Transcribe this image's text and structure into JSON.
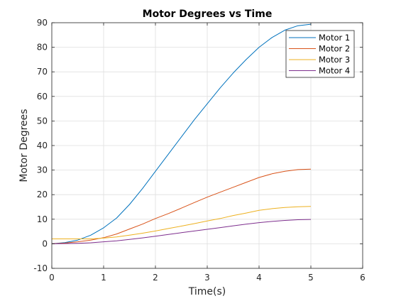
{
  "chart_data": {
    "type": "line",
    "title": "Motor Degrees vs Time",
    "xlabel": "Time(s)",
    "ylabel": "Motor Degrees",
    "xlim": [
      0,
      6
    ],
    "ylim": [
      -10,
      90
    ],
    "xticks": [
      0,
      1,
      2,
      3,
      4,
      5,
      6
    ],
    "yticks": [
      -10,
      0,
      10,
      20,
      30,
      40,
      50,
      60,
      70,
      80,
      90
    ],
    "grid": true,
    "legend_position": "top-right",
    "x": [
      0,
      0.25,
      0.5,
      0.75,
      1,
      1.25,
      1.5,
      1.75,
      2,
      2.25,
      2.5,
      2.75,
      3,
      3.25,
      3.5,
      3.75,
      4,
      4.25,
      4.5,
      4.75,
      5
    ],
    "series": [
      {
        "name": "Motor 1",
        "color": "#0072bd",
        "values": [
          0,
          0.5,
          1.5,
          3.5,
          6.5,
          10.5,
          16,
          22.5,
          29.5,
          36.5,
          43.5,
          50.5,
          57,
          63.5,
          69.5,
          75,
          80,
          84,
          87,
          88.8,
          89.4
        ]
      },
      {
        "name": "Motor 2",
        "color": "#d95319",
        "values": [
          0,
          0.3,
          0.8,
          1.5,
          2.5,
          4,
          6,
          8,
          10.3,
          12.3,
          14.5,
          16.8,
          19,
          21,
          23,
          25,
          27,
          28.5,
          29.5,
          30.2,
          30.4
        ]
      },
      {
        "name": "Motor 3",
        "color": "#edb120",
        "values": [
          2,
          2,
          2,
          2,
          2.3,
          2.8,
          3.5,
          4.3,
          5.2,
          6.2,
          7.2,
          8.2,
          9.3,
          10.3,
          11.5,
          12.5,
          13.6,
          14.3,
          14.8,
          15.1,
          15.2
        ]
      },
      {
        "name": "Motor 4",
        "color": "#7e2f8e",
        "values": [
          0,
          0.1,
          0.2,
          0.4,
          0.8,
          1.2,
          1.8,
          2.4,
          3.1,
          3.8,
          4.5,
          5.2,
          5.9,
          6.6,
          7.3,
          8,
          8.6,
          9.1,
          9.5,
          9.8,
          9.9
        ]
      }
    ]
  }
}
